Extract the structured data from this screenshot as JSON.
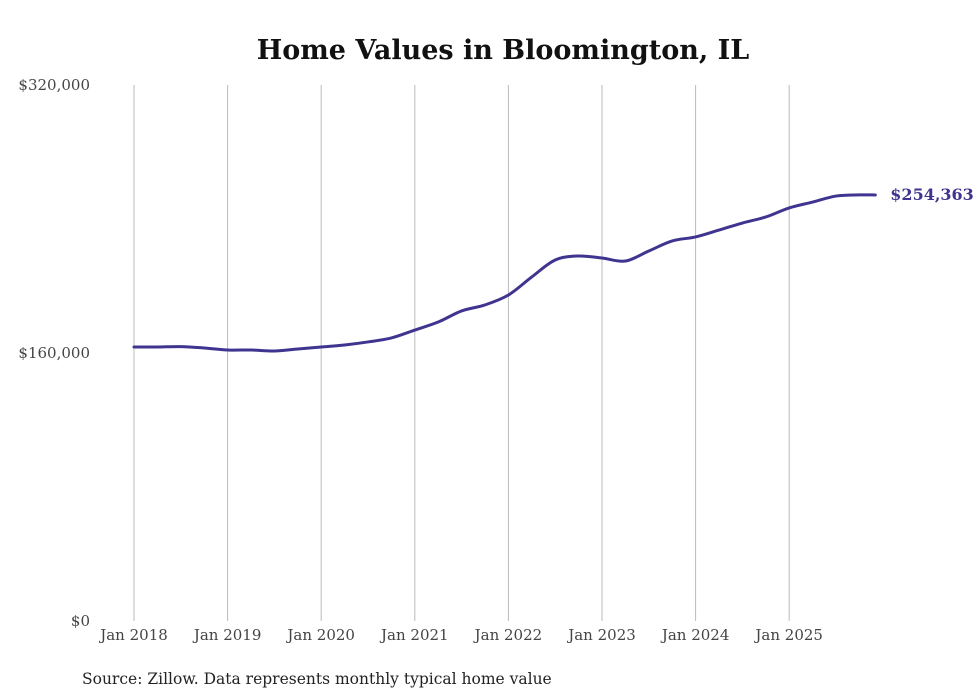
{
  "chart_data": {
    "type": "line",
    "title": "Home Values in Bloomington, IL",
    "xlabel": "",
    "ylabel": "",
    "ylim": [
      0,
      320000
    ],
    "xlim": [
      2018.0,
      2025.92
    ],
    "y_ticks": [
      {
        "value": 0,
        "label": "$0"
      },
      {
        "value": 160000,
        "label": "$160,000"
      },
      {
        "value": 320000,
        "label": "$320,000"
      }
    ],
    "x_ticks": [
      {
        "value": 2018,
        "label": "Jan 2018"
      },
      {
        "value": 2019,
        "label": "Jan 2019"
      },
      {
        "value": 2020,
        "label": "Jan 2020"
      },
      {
        "value": 2021,
        "label": "Jan 2021"
      },
      {
        "value": 2022,
        "label": "Jan 2022"
      },
      {
        "value": 2023,
        "label": "Jan 2023"
      },
      {
        "value": 2024,
        "label": "Jan 2024"
      },
      {
        "value": 2025,
        "label": "Jan 2025"
      }
    ],
    "grid": "vertical",
    "legend": "none",
    "series": [
      {
        "name": "Typical home value",
        "color": "#3f3590",
        "x": [
          2018.0,
          2018.25,
          2018.5,
          2018.75,
          2019.0,
          2019.25,
          2019.5,
          2019.75,
          2020.0,
          2020.25,
          2020.5,
          2020.75,
          2021.0,
          2021.25,
          2021.5,
          2021.75,
          2022.0,
          2022.25,
          2022.5,
          2022.75,
          2023.0,
          2023.25,
          2023.5,
          2023.75,
          2024.0,
          2024.25,
          2024.5,
          2024.75,
          2025.0,
          2025.25,
          2025.5,
          2025.75,
          2025.92
        ],
        "values": [
          163600,
          163600,
          163800,
          163000,
          161800,
          161800,
          161200,
          162400,
          163600,
          164800,
          166600,
          169000,
          173700,
          178500,
          185100,
          188700,
          194600,
          205400,
          215500,
          217900,
          216700,
          214900,
          220900,
          226900,
          229300,
          233400,
          237600,
          241200,
          246600,
          250100,
          253700,
          254400,
          254363
        ]
      }
    ],
    "end_label": "$254,363",
    "source": "Source: Zillow. Data represents monthly typical home value"
  }
}
